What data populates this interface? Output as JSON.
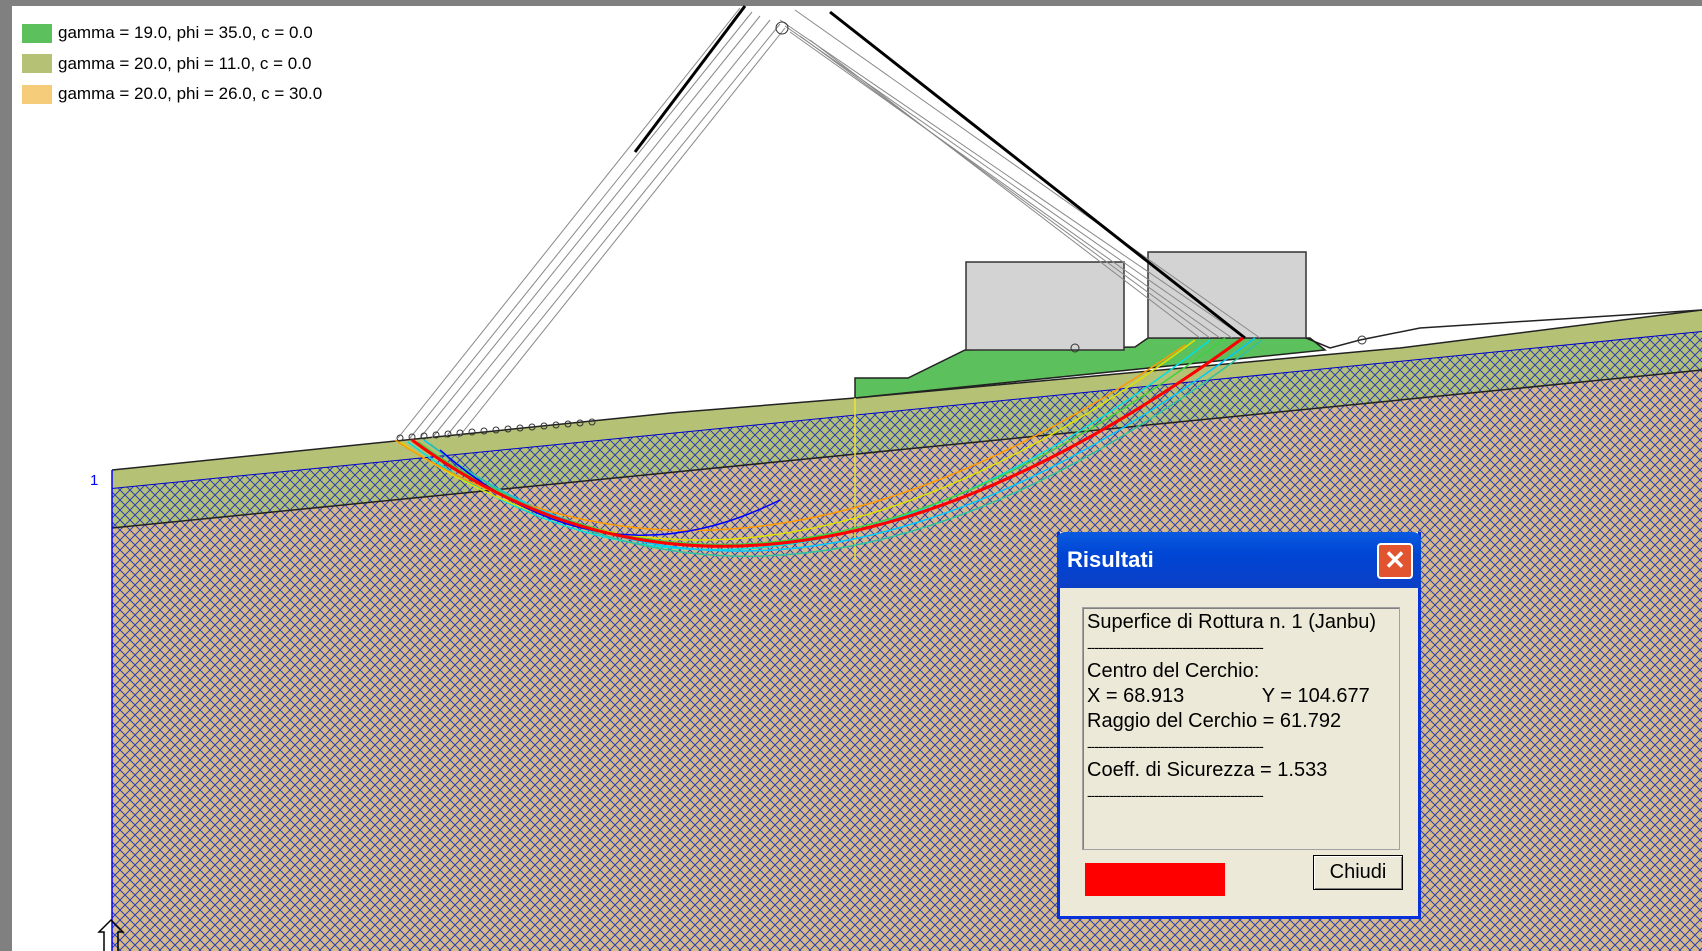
{
  "legend": {
    "items": [
      {
        "label": "gamma = 19.0, phi = 35.0, c = 0.0",
        "color": "#5cc05c"
      },
      {
        "label": "gamma = 20.0, phi = 11.0, c = 0.0",
        "color": "#b5c275"
      },
      {
        "label": "gamma = 20.0, phi = 26.0, c = 30.0",
        "color": "#f5cc7a"
      }
    ]
  },
  "axis": {
    "marker_label": "1"
  },
  "colors": {
    "layer_top": "#b5c275",
    "layer_mid_hatch": "#0000cc",
    "layer_bottom": "#d8ba88",
    "fill_green": "#5cc05c",
    "building": "#d3d3d3",
    "critical_surface": "#ff0000"
  },
  "dialog": {
    "title": "Risultati",
    "lines": {
      "surface": "Superfice di Rottura n. 1 (Janbu)",
      "sep1": "------------------------------------------------",
      "center_title": "Centro del Cerchio:",
      "center_values": "X = 68.913              Y = 104.677",
      "radius": "Raggio del Cerchio = 61.792",
      "sep2": "------------------------------------------------",
      "safety": "Coeff. di Sicurezza = 1.533",
      "sep3": "------------------------------------------------"
    },
    "close_label": "Chiudi",
    "indicator_color": "#ff0000"
  }
}
